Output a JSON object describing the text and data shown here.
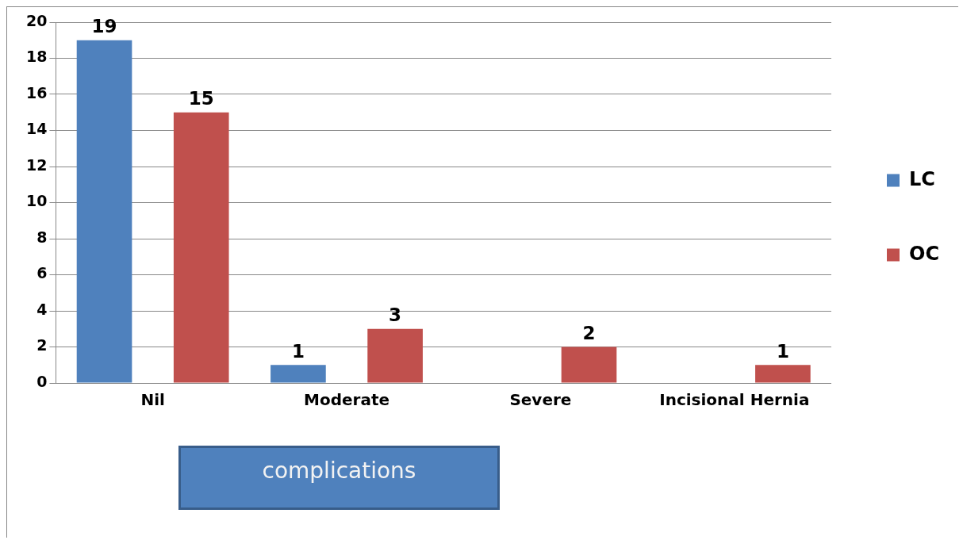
{
  "chart_data": {
    "type": "bar",
    "xlabel": "complications",
    "categories": [
      "Nil",
      "Moderate",
      "Severe",
      "Incisional Hernia"
    ],
    "series": [
      {
        "name": "LC",
        "color": "#4f81bd",
        "values": [
          19,
          1,
          null,
          null
        ]
      },
      {
        "name": "OC",
        "color": "#c0504d",
        "values": [
          15,
          3,
          2,
          1
        ]
      }
    ],
    "ylim": [
      0,
      20
    ],
    "yticks": [
      0,
      2,
      4,
      6,
      8,
      10,
      12,
      14,
      16,
      18,
      20
    ],
    "grid": "y",
    "legend": "right",
    "data_labels": true
  }
}
